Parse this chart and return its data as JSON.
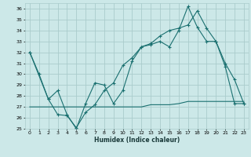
{
  "xlabel": "Humidex (Indice chaleur)",
  "bg_color": "#cce8e8",
  "grid_color": "#aacccc",
  "line_color": "#1a7070",
  "xlim": [
    -0.5,
    23.5
  ],
  "ylim": [
    25,
    36.5
  ],
  "yticks": [
    25,
    26,
    27,
    28,
    29,
    30,
    31,
    32,
    33,
    34,
    35,
    36
  ],
  "xticks": [
    0,
    1,
    2,
    3,
    4,
    5,
    6,
    7,
    8,
    9,
    10,
    11,
    12,
    13,
    14,
    15,
    16,
    17,
    18,
    19,
    20,
    21,
    22,
    23
  ],
  "line1_x": [
    0,
    1,
    2,
    3,
    4,
    5,
    6,
    7,
    8,
    9,
    10,
    11,
    12,
    13,
    14,
    15,
    16,
    17,
    18,
    19,
    20,
    21,
    22,
    23
  ],
  "line1_y": [
    32.0,
    30.0,
    27.7,
    28.5,
    26.3,
    25.0,
    27.3,
    29.2,
    29.0,
    27.3,
    28.5,
    31.2,
    32.5,
    32.7,
    33.0,
    32.5,
    34.0,
    36.2,
    34.3,
    33.0,
    33.0,
    31.0,
    29.5,
    27.3
  ],
  "line2_x": [
    0,
    2,
    3,
    4,
    5,
    6,
    7,
    8,
    9,
    10,
    11,
    12,
    13,
    14,
    15,
    16,
    17,
    18,
    19,
    20,
    21,
    22,
    23
  ],
  "line2_y": [
    27.0,
    27.0,
    27.0,
    27.0,
    27.0,
    27.0,
    27.0,
    27.0,
    27.0,
    27.0,
    27.0,
    27.0,
    27.2,
    27.2,
    27.2,
    27.3,
    27.5,
    27.5,
    27.5,
    27.5,
    27.5,
    27.5,
    27.5
  ],
  "line3_x": [
    0,
    2,
    3,
    4,
    5,
    6,
    7,
    8,
    9,
    10,
    11,
    12,
    13,
    14,
    15,
    16,
    17,
    18,
    19,
    20,
    21,
    22,
    23
  ],
  "line3_y": [
    32.0,
    27.7,
    26.3,
    26.2,
    25.1,
    26.5,
    27.2,
    28.5,
    29.2,
    30.8,
    31.5,
    32.5,
    32.8,
    33.5,
    34.0,
    34.2,
    34.5,
    35.8,
    34.2,
    33.0,
    30.7,
    27.3,
    27.3
  ]
}
